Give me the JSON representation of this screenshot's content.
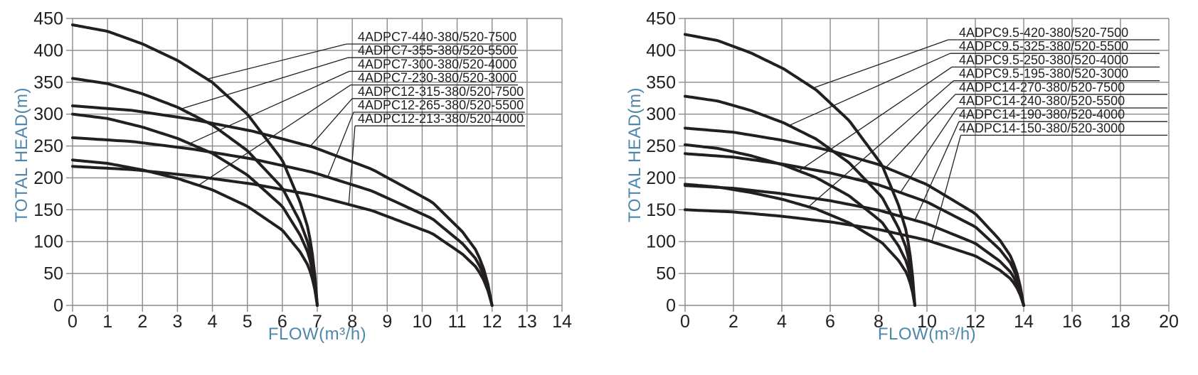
{
  "page": {
    "background": "#ffffff"
  },
  "colors": {
    "curve": "#231f20",
    "grid": "#8a8a8a",
    "tick_text": "#231f20",
    "axis_title_text": "#4d87a9",
    "callout_text": "#231f20"
  },
  "chart_data": [
    {
      "type": "line",
      "title": "",
      "xlabel": "FLOW(m³/h)",
      "ylabel": "TOTAL HEAD(m)",
      "xlim": [
        0,
        14
      ],
      "ylim": [
        0,
        450
      ],
      "x_ticks": [
        0,
        1,
        2,
        3,
        4,
        5,
        6,
        7,
        8,
        9,
        10,
        11,
        12,
        13,
        14
      ],
      "y_ticks": [
        0,
        50,
        100,
        150,
        200,
        250,
        300,
        350,
        400,
        450
      ],
      "grid": true,
      "legend_position": "callout-labels-top-right",
      "curves": [
        {
          "label": "4ADPC7-440-380/520-7500",
          "shutoff_head_m": 440,
          "max_flow_m3h": 7,
          "callout_q": 3.85
        },
        {
          "label": "4ADPC7-355-380/520-5500",
          "shutoff_head_m": 356,
          "max_flow_m3h": 7,
          "callout_q": 3.1
        },
        {
          "label": "4ADPC7-300-380/520-4000",
          "shutoff_head_m": 300,
          "max_flow_m3h": 7,
          "callout_q": 3.35
        },
        {
          "label": "4ADPC7-230-380/520-3000",
          "shutoff_head_m": 228,
          "max_flow_m3h": 7,
          "callout_q": 3.6
        },
        {
          "label": "4ADPC12-315-380/520-7500",
          "shutoff_head_m": 313,
          "max_flow_m3h": 12,
          "callout_q": 6.8
        },
        {
          "label": "4ADPC12-265-380/520-5500",
          "shutoff_head_m": 263,
          "max_flow_m3h": 12,
          "callout_q": 7.3
        },
        {
          "label": "4ADPC12-213-380/520-4000",
          "shutoff_head_m": 218,
          "max_flow_m3h": 12,
          "callout_q": 7.9
        }
      ],
      "curve_shape_normalized": {
        "flow_fraction": [
          0,
          0.143,
          0.286,
          0.429,
          0.571,
          0.714,
          0.857,
          0.929,
          0.964,
          0.986,
          1
        ],
        "head_fraction": [
          1,
          0.977,
          0.932,
          0.873,
          0.795,
          0.682,
          0.518,
          0.37,
          0.27,
          0.15,
          0
        ]
      }
    },
    {
      "type": "line",
      "title": "",
      "xlabel": "FLOW(m³/h)",
      "ylabel": "TOTAL HEAD(m)",
      "xlim": [
        0,
        20
      ],
      "ylim": [
        0,
        450
      ],
      "x_ticks": [
        0,
        2,
        4,
        6,
        8,
        10,
        12,
        14,
        16,
        18,
        20
      ],
      "y_ticks": [
        0,
        50,
        100,
        150,
        200,
        250,
        300,
        350,
        400,
        450
      ],
      "grid": true,
      "legend_position": "callout-labels-top-right",
      "curves": [
        {
          "label": "4ADPC9.5-420-380/520-7500",
          "shutoff_head_m": 425,
          "max_flow_m3h": 9.5,
          "callout_q": 5.3
        },
        {
          "label": "4ADPC9.5-325-380/520-5500",
          "shutoff_head_m": 328,
          "max_flow_m3h": 9.5,
          "callout_q": 4.3
        },
        {
          "label": "4ADPC9.5-250-380/520-4000",
          "shutoff_head_m": 252,
          "max_flow_m3h": 9.5,
          "callout_q": 4.7
        },
        {
          "label": "4ADPC9.5-195-380/520-3000",
          "shutoff_head_m": 190,
          "max_flow_m3h": 9.5,
          "callout_q": 5.1
        },
        {
          "label": "4ADPC14-270-380/520-7500",
          "shutoff_head_m": 278,
          "max_flow_m3h": 14,
          "callout_q": 8.3
        },
        {
          "label": "4ADPC14-240-380/520-5500",
          "shutoff_head_m": 238,
          "max_flow_m3h": 14,
          "callout_q": 8.9
        },
        {
          "label": "4ADPC14-190-380/520-4000",
          "shutoff_head_m": 188,
          "max_flow_m3h": 14,
          "callout_q": 9.5
        },
        {
          "label": "4ADPC14-150-380/520-3000",
          "shutoff_head_m": 150,
          "max_flow_m3h": 14,
          "callout_q": 10.2
        }
      ],
      "curve_shape_normalized": {
        "flow_fraction": [
          0,
          0.143,
          0.286,
          0.429,
          0.571,
          0.714,
          0.857,
          0.929,
          0.964,
          0.986,
          1
        ],
        "head_fraction": [
          1,
          0.977,
          0.932,
          0.873,
          0.795,
          0.682,
          0.518,
          0.37,
          0.27,
          0.15,
          0
        ]
      }
    }
  ]
}
